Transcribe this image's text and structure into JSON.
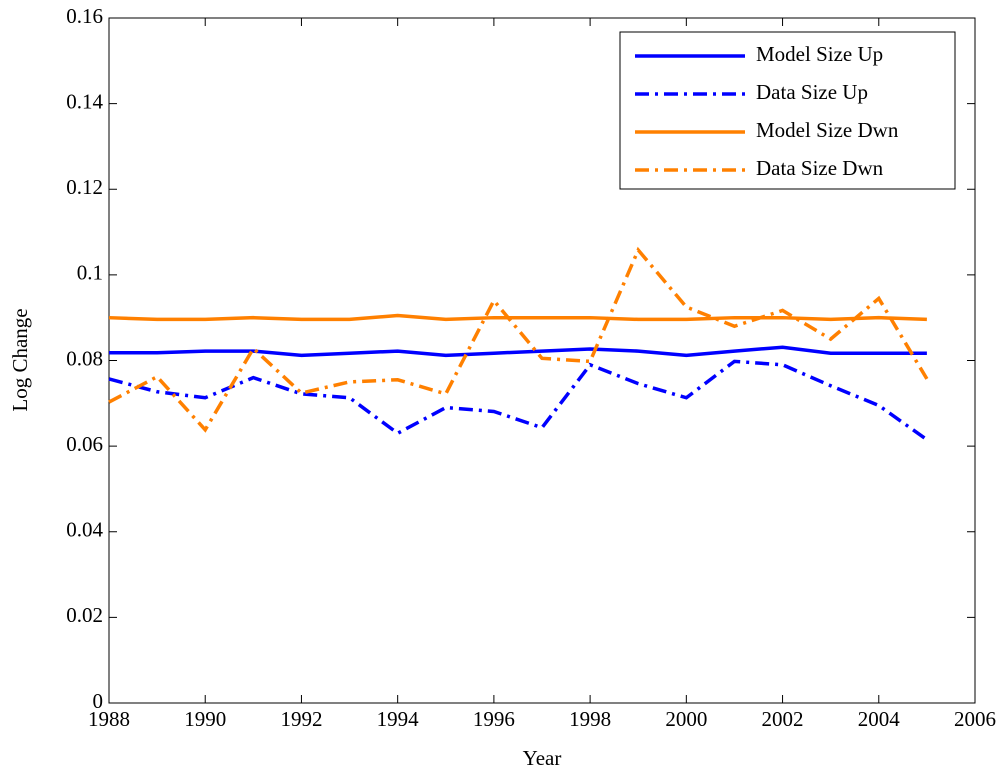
{
  "chart_data": {
    "type": "line",
    "xlabel": "Year",
    "ylabel": "Log Change",
    "x": [
      1988,
      1989,
      1990,
      1991,
      1992,
      1993,
      1994,
      1995,
      1996,
      1997,
      1998,
      1999,
      2000,
      2001,
      2002,
      2003,
      2004,
      2005
    ],
    "series": [
      {
        "name": "Model Size Up",
        "color": "#0000ff",
        "linestyle": "solid",
        "values": [
          0.0818,
          0.0818,
          0.0822,
          0.0822,
          0.0812,
          0.0817,
          0.0822,
          0.0812,
          0.0817,
          0.0822,
          0.0827,
          0.0822,
          0.0812,
          0.0822,
          0.0831,
          0.0817,
          0.0817,
          0.0817
        ]
      },
      {
        "name": "Data Size Up",
        "color": "#0000ff",
        "linestyle": "dashdot",
        "values": [
          0.0757,
          0.0727,
          0.0713,
          0.076,
          0.0722,
          0.0713,
          0.063,
          0.069,
          0.0681,
          0.0643,
          0.079,
          0.0746,
          0.0713,
          0.0798,
          0.079,
          0.0741,
          0.0695,
          0.0615
        ]
      },
      {
        "name": "Model Size Dwn",
        "color": "#ff8000",
        "linestyle": "solid",
        "values": [
          0.09,
          0.0896,
          0.0896,
          0.09,
          0.0896,
          0.0896,
          0.0905,
          0.0896,
          0.09,
          0.09,
          0.09,
          0.0896,
          0.0896,
          0.09,
          0.09,
          0.0896,
          0.09,
          0.0896
        ]
      },
      {
        "name": "Data Size Dwn",
        "color": "#ff8000",
        "linestyle": "dashdot",
        "values": [
          0.0703,
          0.0762,
          0.0638,
          0.0828,
          0.0724,
          0.075,
          0.0755,
          0.0722,
          0.094,
          0.0805,
          0.0798,
          0.1058,
          0.0925,
          0.088,
          0.0917,
          0.085,
          0.0945,
          0.0757
        ]
      }
    ],
    "xlim": [
      1988,
      2006
    ],
    "xticks": [
      1988,
      1990,
      1992,
      1994,
      1996,
      1998,
      2000,
      2002,
      2004,
      2006
    ],
    "ylim": [
      0,
      0.16
    ],
    "yticks": [
      0,
      0.02,
      0.04,
      0.06,
      0.08,
      0.1,
      0.12,
      0.14,
      0.16
    ],
    "grid": false,
    "legend": "upper right"
  }
}
